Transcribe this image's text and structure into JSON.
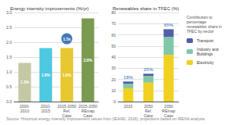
{
  "chart_data": [
    {
      "type": "bar",
      "title": "Energy intensity improvements (%/yr)",
      "categories": [
        "2000-\n2010",
        "2010-\n2015",
        "2015-2050\nRef.\nCase",
        "2015-2050\nREmap\nCase"
      ],
      "values": [
        1.3,
        1.8,
        1.8,
        2.8
      ],
      "colors": [
        "#c5c8a4",
        "#4ec8e0",
        "#e8c830",
        "#7a9a50"
      ],
      "data_labels": true,
      "value_labels": [
        "1.3%",
        "1.8%",
        "1.8%",
        "2.8%"
      ],
      "ylim": [
        0,
        3.0
      ],
      "yticks": [
        {
          "value": 0,
          "label": "0.0"
        },
        0.5,
        {
          "value": 1,
          "label": "1.0"
        },
        1.5,
        {
          "value": 2,
          "label": "2.0"
        },
        2.5,
        {
          "value": 3,
          "label": "3.0"
        }
      ],
      "grid": true,
      "annotations": [
        {
          "text": "1.5x",
          "color": "#4478b8"
        }
      ]
    },
    {
      "type": "bar",
      "stacked": true,
      "title": "Renewables share in TFEC (%)",
      "categories": [
        "2015",
        "2050\nRef.\nCase",
        "2050\nREmap\nCase"
      ],
      "series": [
        {
          "name": "Electricity",
          "color": "#f0d020",
          "values": [
            12,
            17,
            42
          ]
        },
        {
          "name": "Industry and\nBuildings",
          "color": "#80c8a8",
          "values": [
            4,
            6,
            16
          ]
        },
        {
          "name": "Transport",
          "color": "#5060a8",
          "values": [
            2,
            2,
            7
          ]
        }
      ],
      "totals": {
        "values": [
          18,
          25,
          65
        ],
        "value_labels": [
          "18%",
          "25%",
          "65%"
        ],
        "color": "#4478b8"
      },
      "ylim": [
        0,
        80
      ],
      "yticks": [
        0,
        10,
        20,
        30,
        40,
        50,
        60,
        70,
        80
      ],
      "grid": true,
      "legend": "right",
      "legend_title": "Contribution to\npercentage\nrenewables share in\nTFEC by sector"
    }
  ],
  "source": "Source: Historical energy intensity improvement values from (IEA/IEI, 2018), projections based on IRENA analysis"
}
